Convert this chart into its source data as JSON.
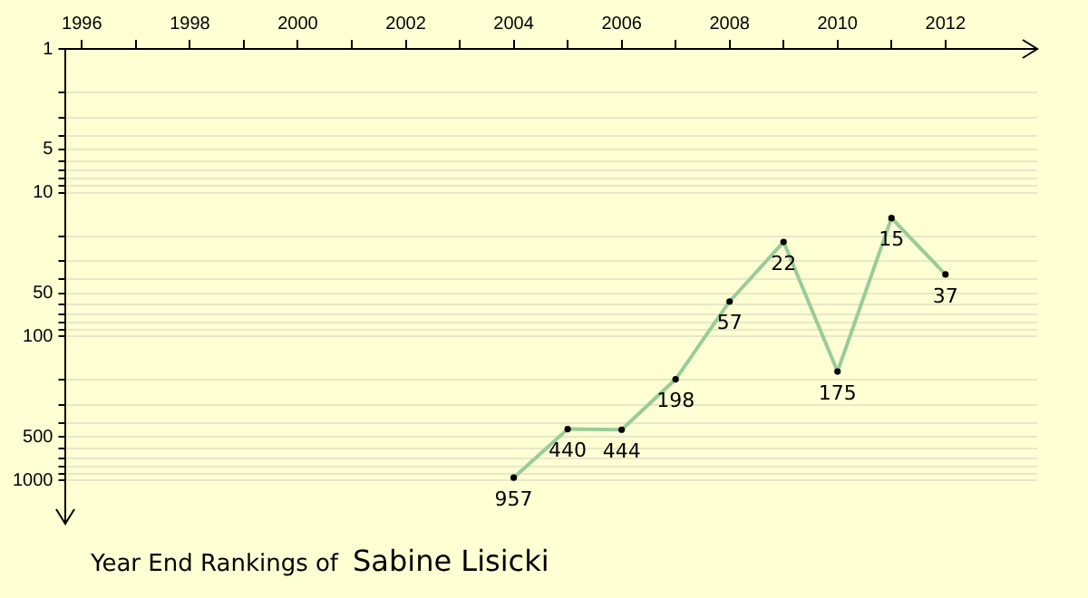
{
  "chart_data": {
    "type": "line",
    "title": "Year End Rankings of",
    "subtitle": "Sabine Lisicki",
    "x": [
      2004,
      2005,
      2006,
      2007,
      2008,
      2009,
      2010,
      2011,
      2012
    ],
    "series": [
      {
        "color": "#99cc99",
        "values": [
          957,
          440,
          444,
          198,
          57,
          22,
          175,
          15,
          37
        ]
      }
    ],
    "xlim": [
      1995.7,
      2013.7
    ],
    "xticks": [
      1996,
      {
        "value": 1997,
        "label": null
      },
      1998,
      {
        "value": 1999,
        "label": null
      },
      2000,
      {
        "value": 2001,
        "label": null
      },
      2002,
      {
        "value": 2003,
        "label": null
      },
      2004,
      {
        "value": 2005,
        "label": null
      },
      2006,
      {
        "value": 2007,
        "label": null
      },
      2008,
      {
        "value": 2009,
        "label": null
      },
      2010,
      {
        "value": 2011,
        "label": null
      },
      2012
    ],
    "ylim": [
      2000,
      1
    ],
    "yticks": [
      1,
      {
        "value": 2,
        "label": null
      },
      {
        "value": 3,
        "label": null
      },
      {
        "value": 4,
        "label": null
      },
      5,
      {
        "value": 6,
        "label": null
      },
      {
        "value": 7,
        "label": null
      },
      {
        "value": 8,
        "label": null
      },
      {
        "value": 9,
        "label": null
      },
      10,
      {
        "value": 20,
        "label": null
      },
      {
        "value": 30,
        "label": null
      },
      {
        "value": 40,
        "label": null
      },
      50,
      {
        "value": 60,
        "label": null
      },
      {
        "value": 70,
        "label": null
      },
      {
        "value": 80,
        "label": null
      },
      {
        "value": 90,
        "label": null
      },
      100,
      {
        "value": 200,
        "label": null
      },
      {
        "value": 300,
        "label": null
      },
      {
        "value": 400,
        "label": null
      },
      500,
      {
        "value": 600,
        "label": null
      },
      {
        "value": 700,
        "label": null
      },
      {
        "value": 800,
        "label": null
      },
      {
        "value": 900,
        "label": null
      },
      1000
    ],
    "log": "y",
    "grid": "y",
    "marker": "circle",
    "line_style": "solid",
    "data_labels": true,
    "legend": false
  }
}
